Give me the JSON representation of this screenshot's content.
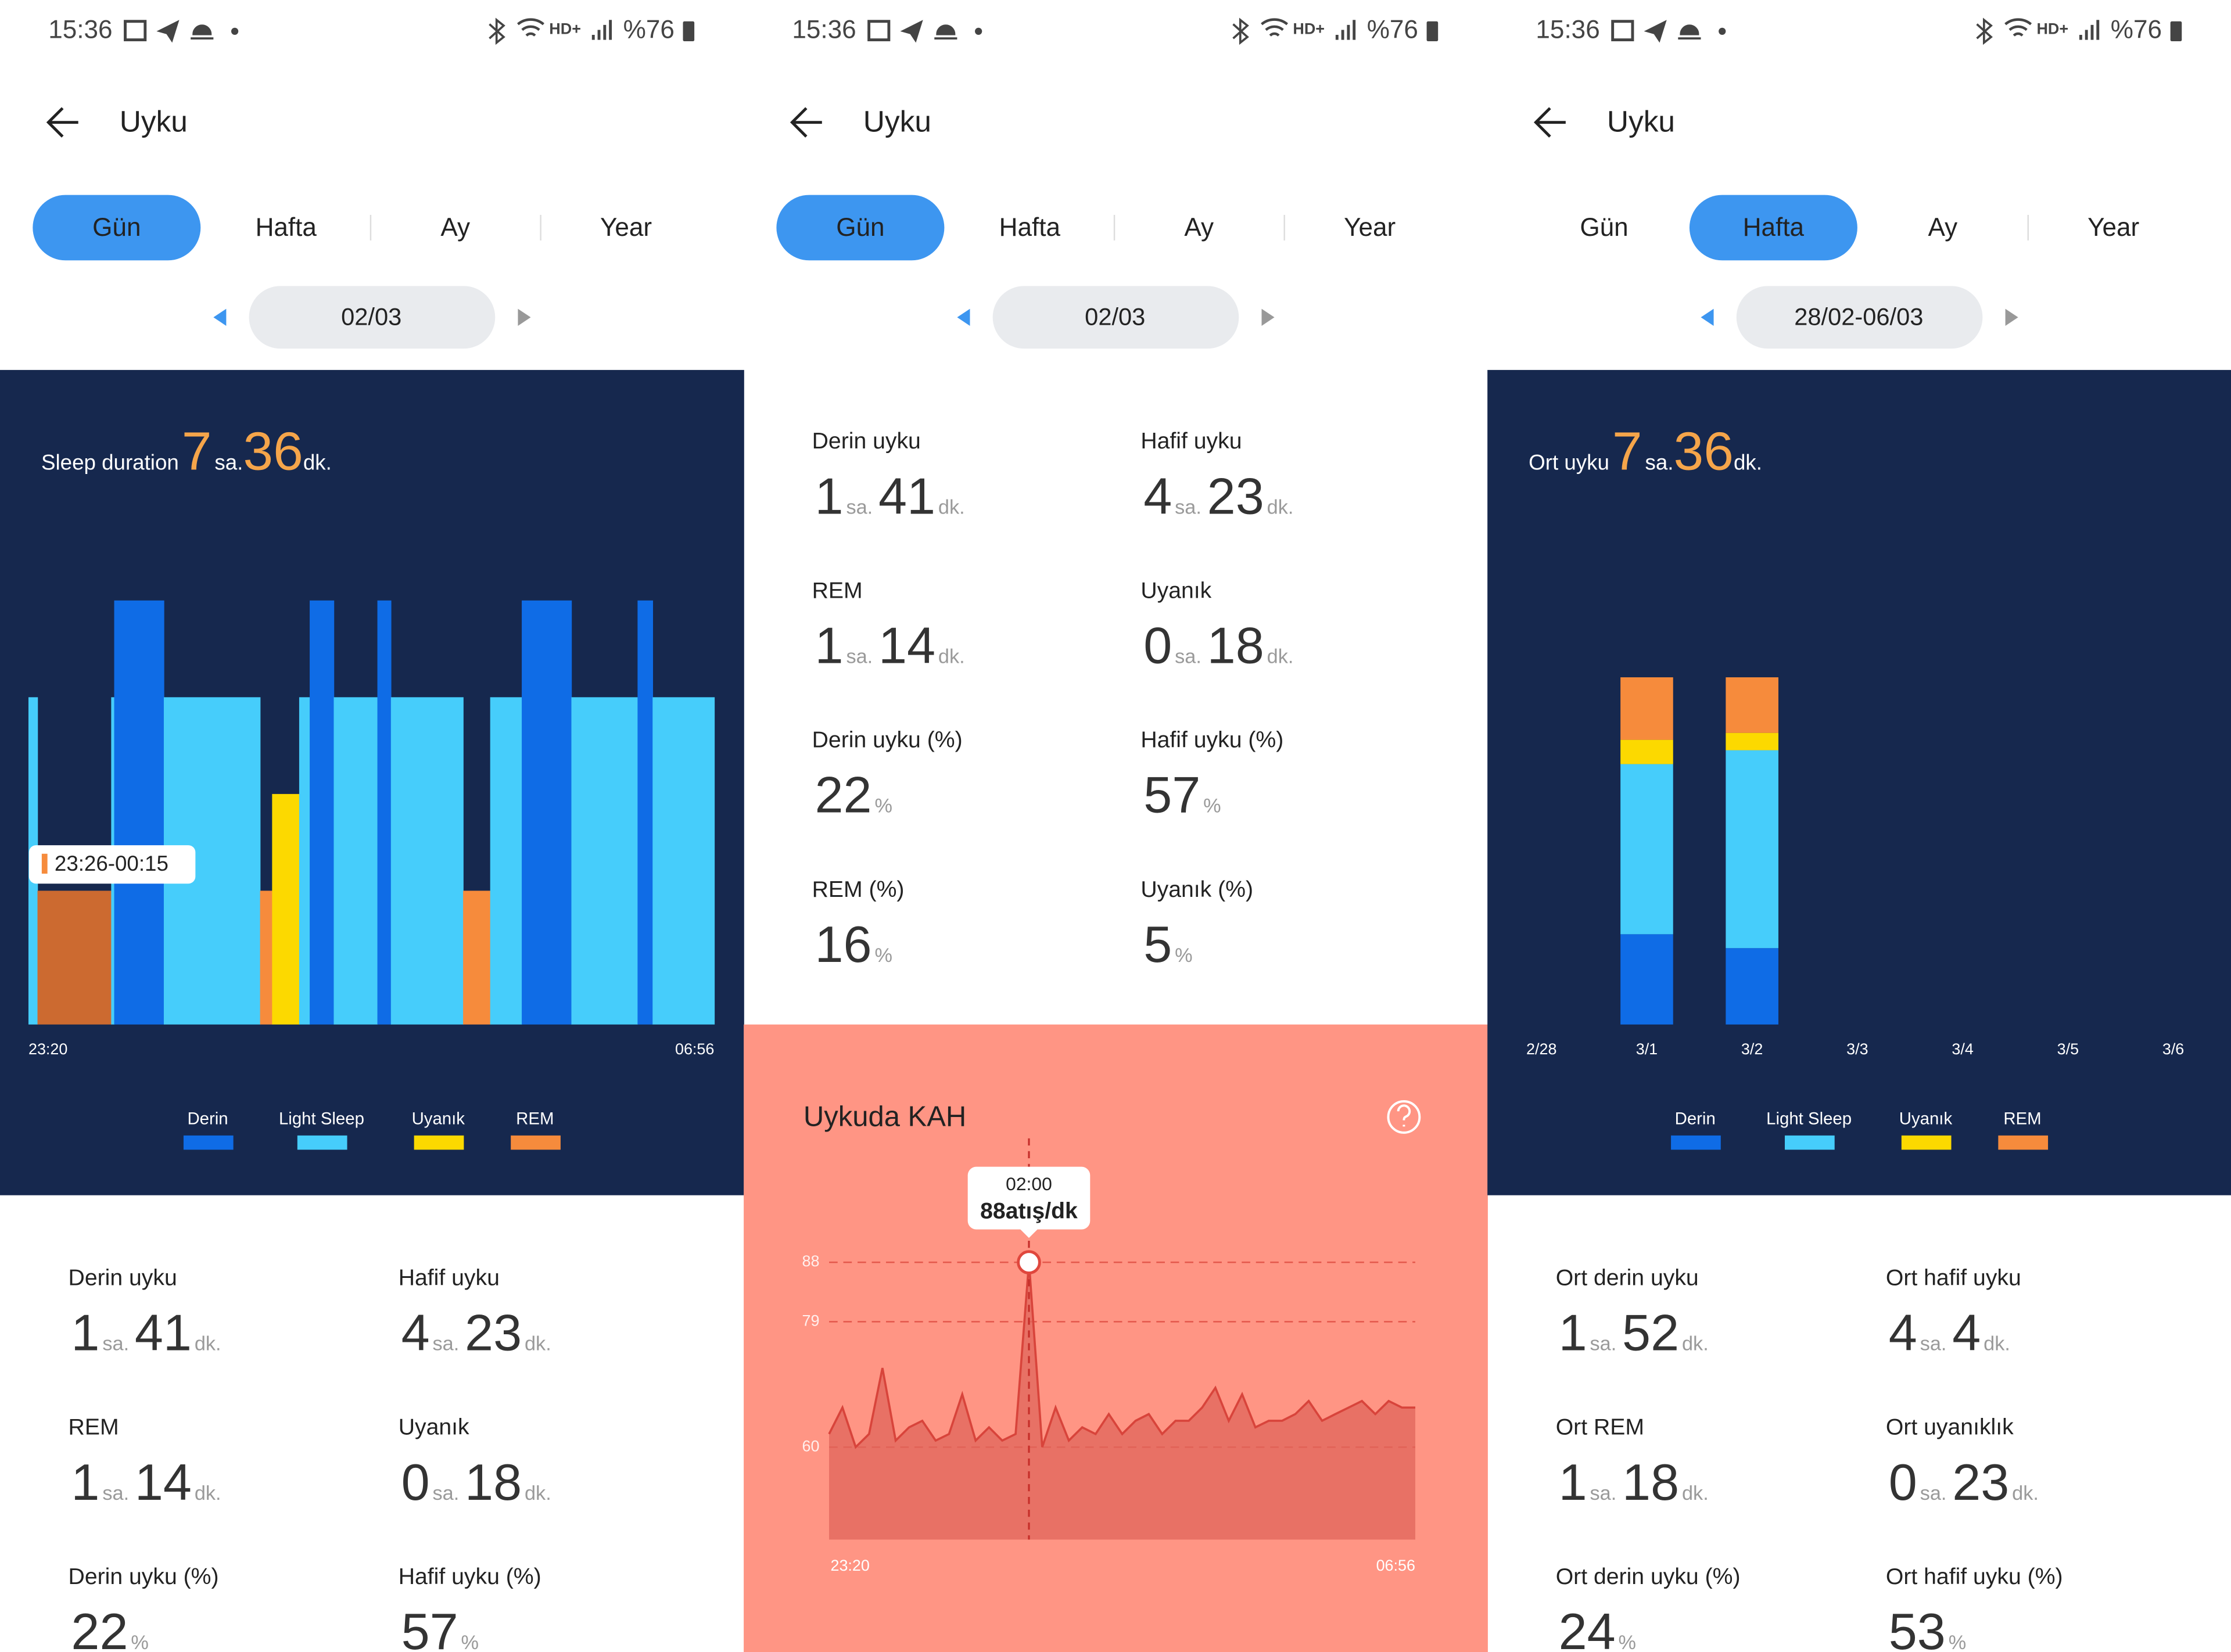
{
  "status_bar": {
    "time": "15:36",
    "network": "HD+",
    "battery": "%76"
  },
  "header": {
    "title": "Uyku"
  },
  "tabs": [
    "Gün",
    "Hafta",
    "Ay",
    "Year"
  ],
  "panels": [
    {
      "active_tab": 0,
      "date": "02/03",
      "summary": {
        "label": "Sleep duration",
        "hours": 7,
        "hours_unit": "sa.",
        "minutes": 36,
        "minutes_unit": "dk."
      },
      "day_chart": {
        "type": "hypnogram",
        "stages": [
          {
            "name": "Derin",
            "color": "#0f6ce6"
          },
          {
            "name": "Light Sleep",
            "color": "#46cdfb"
          },
          {
            "name": "Uyanık",
            "color": "#fcd900"
          },
          {
            "name": "REM",
            "color": "#f68b3c"
          }
        ],
        "segments": {
          "stage": [
            1,
            3,
            1,
            0,
            1,
            3,
            2,
            1,
            0,
            1,
            0,
            1,
            3,
            1,
            0,
            1,
            0,
            1
          ],
          "minutes": [
            6,
            49,
            2,
            33,
            64,
            8,
            18,
            7,
            16,
            29,
            9,
            48,
            18,
            21,
            33,
            44,
            10,
            41
          ]
        },
        "selected": 1,
        "selected_color": "#cc6a30",
        "selected_label": "23:26-00:15",
        "x_start": "23:20",
        "x_end": "06:56"
      },
      "stats": [
        {
          "label": "Derin uyku",
          "parts": [
            {
              "value": 1,
              "unit": "sa."
            },
            {
              "value": 41,
              "unit": "dk."
            }
          ]
        },
        {
          "label": "Hafif uyku",
          "parts": [
            {
              "value": 4,
              "unit": "sa."
            },
            {
              "value": 23,
              "unit": "dk."
            }
          ]
        },
        {
          "label": "REM",
          "parts": [
            {
              "value": 1,
              "unit": "sa."
            },
            {
              "value": 14,
              "unit": "dk."
            }
          ]
        },
        {
          "label": "Uyanık",
          "parts": [
            {
              "value": 0,
              "unit": "sa."
            },
            {
              "value": 18,
              "unit": "dk."
            }
          ]
        },
        {
          "label": "Derin uyku (%)",
          "parts": [
            {
              "value": 22,
              "unit": "%"
            }
          ]
        },
        {
          "label": "Hafif uyku (%)",
          "parts": [
            {
              "value": 57,
              "unit": "%"
            }
          ]
        }
      ]
    },
    {
      "active_tab": 0,
      "date": "02/03",
      "stats": [
        {
          "label": "Derin uyku",
          "parts": [
            {
              "value": 1,
              "unit": "sa."
            },
            {
              "value": 41,
              "unit": "dk."
            }
          ]
        },
        {
          "label": "Hafif uyku",
          "parts": [
            {
              "value": 4,
              "unit": "sa."
            },
            {
              "value": 23,
              "unit": "dk."
            }
          ]
        },
        {
          "label": "REM",
          "parts": [
            {
              "value": 1,
              "unit": "sa."
            },
            {
              "value": 14,
              "unit": "dk."
            }
          ]
        },
        {
          "label": "Uyanık",
          "parts": [
            {
              "value": 0,
              "unit": "sa."
            },
            {
              "value": 18,
              "unit": "dk."
            }
          ]
        },
        {
          "label": "Derin uyku (%)",
          "parts": [
            {
              "value": 22,
              "unit": "%"
            }
          ]
        },
        {
          "label": "Hafif uyku (%)",
          "parts": [
            {
              "value": 57,
              "unit": "%"
            }
          ]
        },
        {
          "label": "REM (%)",
          "parts": [
            {
              "value": 16,
              "unit": "%"
            }
          ]
        },
        {
          "label": "Uyanık (%)",
          "parts": [
            {
              "value": 5,
              "unit": "%"
            }
          ]
        }
      ],
      "hr_chart": {
        "type": "line",
        "title": "Uykuda KAH",
        "color": "#d8443b",
        "values": [
          62,
          66,
          60,
          62,
          72,
          61,
          63,
          64,
          61,
          62,
          68,
          61,
          63,
          61,
          62,
          88,
          60,
          66,
          61,
          63,
          62,
          65,
          62,
          64,
          65,
          62,
          64,
          64,
          66,
          69,
          64,
          68,
          63,
          64,
          64,
          65,
          67,
          64,
          65,
          66,
          67,
          65,
          67,
          66,
          66
        ],
        "ylim": [
          46,
          96
        ],
        "yticks": [
          88,
          79,
          60
        ],
        "grid": true,
        "x_start": "23:20",
        "x_end": "06:56",
        "selected": 15,
        "tooltip_time": "02:00",
        "tooltip_value": "88atış/dk"
      }
    },
    {
      "active_tab": 1,
      "date": "28/02-06/03",
      "summary": {
        "label": "Ort uyku",
        "hours": 7,
        "hours_unit": "sa.",
        "minutes": 36,
        "minutes_unit": "dk."
      },
      "week_chart": {
        "type": "bar",
        "stacked": true,
        "categories": [
          "2/28",
          "3/1",
          "3/2",
          "3/3",
          "3/4",
          "3/5",
          "3/6"
        ],
        "series": [
          {
            "name": "Derin",
            "color": "#0f6ce6",
            "values": [
              null,
              26,
              22,
              null,
              null,
              null,
              null
            ]
          },
          {
            "name": "Light Sleep",
            "color": "#46cdfb",
            "values": [
              null,
              49,
              57,
              null,
              null,
              null,
              null
            ]
          },
          {
            "name": "Uyanık",
            "color": "#fcd900",
            "values": [
              null,
              7,
              5,
              null,
              null,
              null,
              null
            ]
          },
          {
            "name": "REM",
            "color": "#f68b3c",
            "values": [
              null,
              18,
              16,
              null,
              null,
              null,
              null
            ]
          }
        ],
        "ylim": [
          0,
          100
        ]
      },
      "stats": [
        {
          "label": "Ort derin uyku",
          "parts": [
            {
              "value": 1,
              "unit": "sa."
            },
            {
              "value": 52,
              "unit": "dk."
            }
          ]
        },
        {
          "label": "Ort hafif uyku",
          "parts": [
            {
              "value": 4,
              "unit": "sa."
            },
            {
              "value": 4,
              "unit": "dk."
            }
          ]
        },
        {
          "label": "Ort REM",
          "parts": [
            {
              "value": 1,
              "unit": "sa."
            },
            {
              "value": 18,
              "unit": "dk."
            }
          ]
        },
        {
          "label": "Ort uyanıklık",
          "parts": [
            {
              "value": 0,
              "unit": "sa."
            },
            {
              "value": 23,
              "unit": "dk."
            }
          ]
        },
        {
          "label": "Ort derin uyku (%)",
          "parts": [
            {
              "value": 24,
              "unit": "%"
            }
          ]
        },
        {
          "label": "Ort hafif uyku (%)",
          "parts": [
            {
              "value": 53,
              "unit": "%"
            }
          ]
        }
      ]
    }
  ]
}
